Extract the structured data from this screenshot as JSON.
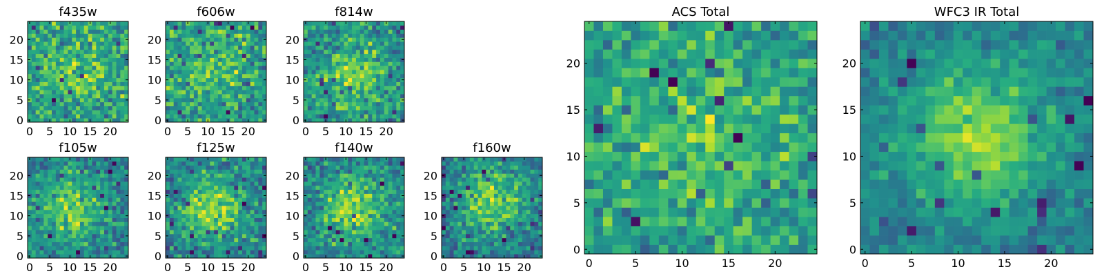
{
  "figure": {
    "colormap": "viridis"
  },
  "chart_data": [
    {
      "type": "heatmap",
      "title": "f435w",
      "xlabel": "",
      "ylabel": "",
      "grid": false,
      "xlim": [
        0,
        24
      ],
      "ylim": [
        0,
        24
      ],
      "xticks": [
        0,
        5,
        10,
        15,
        20
      ],
      "yticks": [
        0,
        5,
        10,
        15,
        20
      ],
      "size": 25,
      "peak_center": [
        12,
        11
      ],
      "peak_strength": 0.15,
      "noise": 0.22,
      "base_level": 0.58,
      "seed": 11
    },
    {
      "type": "heatmap",
      "title": "f606w",
      "xlabel": "",
      "ylabel": "",
      "grid": false,
      "xlim": [
        0,
        24
      ],
      "ylim": [
        0,
        24
      ],
      "xticks": [
        0,
        5,
        10,
        15,
        20
      ],
      "yticks": [
        0,
        5,
        10,
        15,
        20
      ],
      "size": 25,
      "peak_center": [
        12,
        13
      ],
      "peak_strength": 0.18,
      "noise": 0.22,
      "base_level": 0.56,
      "seed": 23
    },
    {
      "type": "heatmap",
      "title": "f814w",
      "xlabel": "",
      "ylabel": "",
      "grid": false,
      "xlim": [
        0,
        24
      ],
      "ylim": [
        0,
        24
      ],
      "xticks": [
        0,
        5,
        10,
        15,
        20
      ],
      "yticks": [
        0,
        5,
        10,
        15,
        20
      ],
      "size": 25,
      "peak_center": [
        12,
        11
      ],
      "peak_strength": 0.25,
      "noise": 0.22,
      "base_level": 0.52,
      "seed": 37
    },
    {
      "type": "heatmap",
      "title": "f105w",
      "xlabel": "",
      "ylabel": "",
      "grid": false,
      "xlim": [
        0,
        24
      ],
      "ylim": [
        0,
        24
      ],
      "xticks": [
        0,
        5,
        10,
        15,
        20
      ],
      "yticks": [
        0,
        5,
        10,
        15,
        20
      ],
      "size": 25,
      "peak_center": [
        11,
        12
      ],
      "peak_strength": 0.35,
      "noise": 0.2,
      "base_level": 0.45,
      "seed": 41
    },
    {
      "type": "heatmap",
      "title": "f125w",
      "xlabel": "",
      "ylabel": "",
      "grid": false,
      "xlim": [
        0,
        24
      ],
      "ylim": [
        0,
        24
      ],
      "xticks": [
        0,
        5,
        10,
        15,
        20
      ],
      "yticks": [
        0,
        5,
        10,
        15,
        20
      ],
      "size": 25,
      "peak_center": [
        11,
        12
      ],
      "peak_strength": 0.38,
      "noise": 0.2,
      "base_level": 0.45,
      "seed": 53
    },
    {
      "type": "heatmap",
      "title": "f140w",
      "xlabel": "",
      "ylabel": "",
      "grid": false,
      "xlim": [
        0,
        24
      ],
      "ylim": [
        0,
        24
      ],
      "xticks": [
        0,
        5,
        10,
        15,
        20
      ],
      "yticks": [
        0,
        5,
        10,
        15,
        20
      ],
      "size": 25,
      "peak_center": [
        12,
        12
      ],
      "peak_strength": 0.38,
      "noise": 0.2,
      "base_level": 0.45,
      "seed": 67
    },
    {
      "type": "heatmap",
      "title": "f160w",
      "xlabel": "",
      "ylabel": "",
      "grid": false,
      "xlim": [
        0,
        24
      ],
      "ylim": [
        0,
        24
      ],
      "xticks": [
        0,
        5,
        10,
        15,
        20
      ],
      "yticks": [
        0,
        5,
        10,
        15,
        20
      ],
      "size": 25,
      "peak_center": [
        12,
        14
      ],
      "peak_strength": 0.4,
      "noise": 0.2,
      "base_level": 0.42,
      "seed": 79
    },
    {
      "type": "heatmap",
      "title": "ACS Total",
      "xlabel": "",
      "ylabel": "",
      "grid": false,
      "xlim": [
        0,
        24
      ],
      "ylim": [
        0,
        24
      ],
      "xticks": [
        0,
        5,
        10,
        15,
        20
      ],
      "yticks": [
        0,
        5,
        10,
        15,
        20
      ],
      "size": 25,
      "peak_center": [
        12,
        11
      ],
      "peak_strength": 0.2,
      "noise": 0.2,
      "base_level": 0.56,
      "seed": 97
    },
    {
      "type": "heatmap",
      "title": "WFC3 IR Total",
      "xlabel": "",
      "ylabel": "",
      "grid": false,
      "xlim": [
        0,
        24
      ],
      "ylim": [
        0,
        24
      ],
      "xticks": [
        0,
        5,
        10,
        15,
        20
      ],
      "yticks": [
        0,
        5,
        10,
        15,
        20
      ],
      "size": 25,
      "peak_center": [
        12,
        12
      ],
      "peak_strength": 0.42,
      "noise": 0.12,
      "base_level": 0.42,
      "seed": 113
    }
  ]
}
